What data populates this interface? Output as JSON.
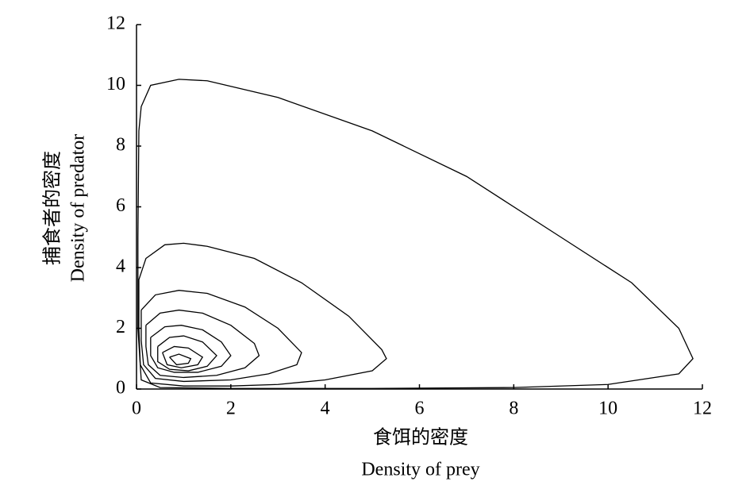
{
  "chart_data": {
    "type": "line",
    "x_label_cn": "食饵的密度",
    "x_label": "Density of prey",
    "y_label_cn": "捕食者的密度",
    "y_label": "Density of predator",
    "xlim": [
      0,
      12
    ],
    "ylim": [
      0,
      12
    ],
    "xticks": [
      0,
      2,
      4,
      6,
      8,
      10,
      12
    ],
    "yticks": [
      0,
      2,
      4,
      6,
      8,
      10,
      12
    ],
    "color": "#000000",
    "series": [
      {
        "x": [
          0.05,
          0.1,
          0.3,
          0.9,
          1.5,
          3,
          5,
          7,
          9,
          10.5,
          11.5,
          11.8,
          11.5,
          10,
          8,
          5,
          2,
          0.5,
          0.1,
          0.03,
          0.03,
          0.05
        ],
        "values": [
          8.5,
          9.3,
          10,
          10.2,
          10.15,
          9.6,
          8.5,
          7,
          5,
          3.5,
          2,
          1,
          0.5,
          0.15,
          0.05,
          0.02,
          0.02,
          0.05,
          0.3,
          2,
          5,
          8.5
        ]
      },
      {
        "x": [
          0.05,
          0.2,
          0.6,
          1,
          1.5,
          2.5,
          3.5,
          4.5,
          5.2,
          5.3,
          5,
          4,
          3,
          2,
          1,
          0.3,
          0.08,
          0.05,
          0.05
        ],
        "values": [
          3.6,
          4.3,
          4.75,
          4.8,
          4.7,
          4.3,
          3.5,
          2.4,
          1.3,
          1,
          0.6,
          0.3,
          0.15,
          0.1,
          0.1,
          0.2,
          0.8,
          2,
          3.6
        ]
      },
      {
        "x": [
          0.1,
          0.4,
          0.9,
          1.5,
          2.3,
          3,
          3.5,
          3.4,
          2.8,
          2,
          1,
          0.4,
          0.15,
          0.1,
          0.1
        ],
        "values": [
          2.6,
          3.1,
          3.25,
          3.15,
          2.7,
          2,
          1.2,
          0.8,
          0.5,
          0.3,
          0.25,
          0.35,
          0.8,
          1.6,
          2.6
        ]
      },
      {
        "x": [
          0.2,
          0.5,
          0.9,
          1.4,
          2,
          2.5,
          2.6,
          2.3,
          1.7,
          1,
          0.5,
          0.25,
          0.2,
          0.2
        ],
        "values": [
          2.1,
          2.5,
          2.6,
          2.5,
          2.1,
          1.5,
          1.1,
          0.7,
          0.45,
          0.38,
          0.45,
          0.8,
          1.4,
          2.1
        ]
      },
      {
        "x": [
          0.3,
          0.6,
          0.95,
          1.4,
          1.8,
          2,
          1.8,
          1.3,
          0.8,
          0.45,
          0.3,
          0.3
        ],
        "values": [
          1.7,
          2.05,
          2.1,
          1.95,
          1.55,
          1.1,
          0.75,
          0.55,
          0.55,
          0.7,
          1.1,
          1.7
        ]
      },
      {
        "x": [
          0.45,
          0.7,
          1,
          1.4,
          1.7,
          1.5,
          1.1,
          0.7,
          0.45,
          0.45
        ],
        "values": [
          1.4,
          1.7,
          1.75,
          1.55,
          1.1,
          0.75,
          0.6,
          0.65,
          0.9,
          1.4
        ]
      },
      {
        "x": [
          0.55,
          0.8,
          1.1,
          1.4,
          1.3,
          0.95,
          0.65,
          0.55
        ],
        "values": [
          1.2,
          1.4,
          1.35,
          1.05,
          0.8,
          0.7,
          0.8,
          1.2
        ]
      },
      {
        "x": [
          0.7,
          0.9,
          1.15,
          1.1,
          0.85,
          0.7
        ],
        "values": [
          1.05,
          1.15,
          1.0,
          0.85,
          0.8,
          1.05
        ]
      }
    ]
  }
}
